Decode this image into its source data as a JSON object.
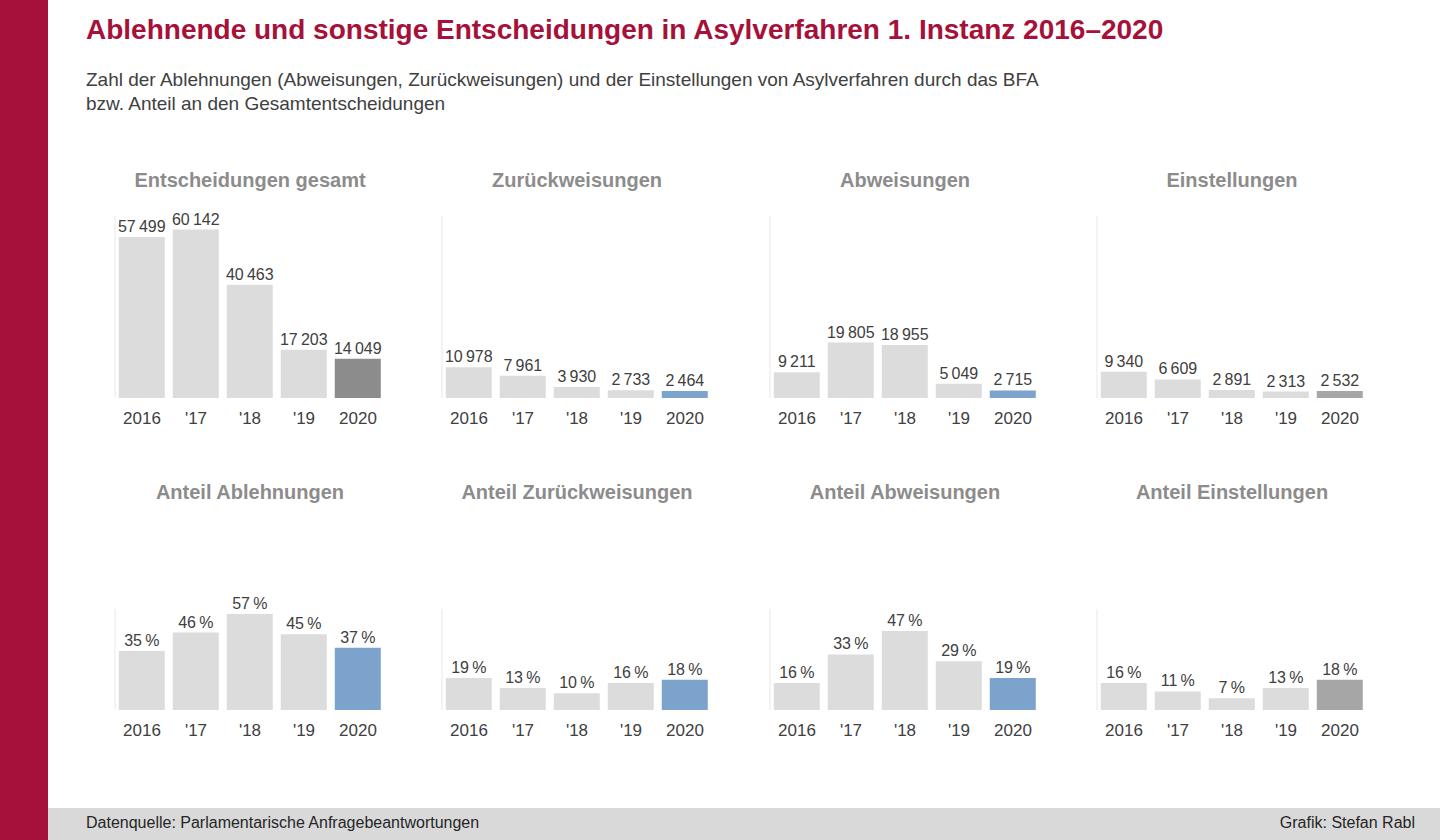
{
  "title": "Ablehnende und sonstige Entscheidungen in Asylverfahren 1. Instanz 2016–2020",
  "subtitle": "Zahl der Ablehnungen (Abweisungen, Zurückweisungen) und der Einstellungen von Asylverfahren durch das BFA\nbzw. Anteil an den Gesamtentscheidungen",
  "source": "Datenquelle: Parlamentarische Anfragebeantwortungen",
  "credit": "Grafik: Stefan Rabl",
  "chart_data": [
    {
      "type": "bar",
      "title": "Entscheidungen gesamt",
      "categories": [
        "2016",
        "'17",
        "'18",
        "'19",
        "2020"
      ],
      "values": [
        57499,
        60142,
        40463,
        17203,
        14049
      ],
      "value_labels": [
        "57 499",
        "60 142",
        "40 463",
        "17 203",
        "14 049"
      ],
      "colors": [
        "#dcdcdc",
        "#dcdcdc",
        "#dcdcdc",
        "#dcdcdc",
        "#8c8c8c"
      ],
      "ylim": [
        0,
        65000
      ],
      "data_labels": true,
      "tick_labels": "x"
    },
    {
      "type": "bar",
      "title": "Zurückweisungen",
      "categories": [
        "2016",
        "'17",
        "'18",
        "'19",
        "2020"
      ],
      "values": [
        10978,
        7961,
        3930,
        2733,
        2464
      ],
      "value_labels": [
        "10 978",
        "7 961",
        "3 930",
        "2 733",
        "2 464"
      ],
      "colors": [
        "#dcdcdc",
        "#dcdcdc",
        "#dcdcdc",
        "#dcdcdc",
        "#7ba3cc"
      ],
      "ylim": [
        0,
        65000
      ],
      "data_labels": true,
      "tick_labels": "x"
    },
    {
      "type": "bar",
      "title": "Abweisungen",
      "categories": [
        "2016",
        "'17",
        "'18",
        "'19",
        "2020"
      ],
      "values": [
        9211,
        19805,
        18955,
        5049,
        2715
      ],
      "value_labels": [
        "9 211",
        "19 805",
        "18 955",
        "5 049",
        "2 715"
      ],
      "colors": [
        "#dcdcdc",
        "#dcdcdc",
        "#dcdcdc",
        "#dcdcdc",
        "#7ba3cc"
      ],
      "ylim": [
        0,
        65000
      ],
      "data_labels": true,
      "tick_labels": "x"
    },
    {
      "type": "bar",
      "title": "Einstellungen",
      "categories": [
        "2016",
        "'17",
        "'18",
        "'19",
        "2020"
      ],
      "values": [
        9340,
        6609,
        2891,
        2313,
        2532
      ],
      "value_labels": [
        "9 340",
        "6 609",
        "2 891",
        "2 313",
        "2 532"
      ],
      "colors": [
        "#dcdcdc",
        "#dcdcdc",
        "#dcdcdc",
        "#dcdcdc",
        "#a6a6a6"
      ],
      "ylim": [
        0,
        65000
      ],
      "data_labels": true,
      "tick_labels": "x"
    },
    {
      "type": "bar",
      "title": "Anteil Ablehnungen",
      "categories": [
        "2016",
        "'17",
        "'18",
        "'19",
        "2020"
      ],
      "values": [
        35,
        46,
        57,
        45,
        37
      ],
      "value_labels": [
        "35 %",
        "46 %",
        "57 %",
        "45 %",
        "37 %"
      ],
      "colors": [
        "#dcdcdc",
        "#dcdcdc",
        "#dcdcdc",
        "#dcdcdc",
        "#7ba3cc"
      ],
      "ylim": [
        0,
        60
      ],
      "data_labels": true,
      "tick_labels": "x"
    },
    {
      "type": "bar",
      "title": "Anteil Zurückweisungen",
      "categories": [
        "2016",
        "'17",
        "'18",
        "'19",
        "2020"
      ],
      "values": [
        19,
        13,
        10,
        16,
        18
      ],
      "value_labels": [
        "19 %",
        "13 %",
        "10 %",
        "16 %",
        "18 %"
      ],
      "colors": [
        "#dcdcdc",
        "#dcdcdc",
        "#dcdcdc",
        "#dcdcdc",
        "#7ba3cc"
      ],
      "ylim": [
        0,
        60
      ],
      "data_labels": true,
      "tick_labels": "x"
    },
    {
      "type": "bar",
      "title": "Anteil Abweisungen",
      "categories": [
        "2016",
        "'17",
        "'18",
        "'19",
        "2020"
      ],
      "values": [
        16,
        33,
        47,
        29,
        19
      ],
      "value_labels": [
        "16 %",
        "33 %",
        "47 %",
        "29 %",
        "19 %"
      ],
      "colors": [
        "#dcdcdc",
        "#dcdcdc",
        "#dcdcdc",
        "#dcdcdc",
        "#7ba3cc"
      ],
      "ylim": [
        0,
        60
      ],
      "data_labels": true,
      "tick_labels": "x"
    },
    {
      "type": "bar",
      "title": "Anteil Einstellungen",
      "categories": [
        "2016",
        "'17",
        "'18",
        "'19",
        "2020"
      ],
      "values": [
        16,
        11,
        7,
        13,
        18
      ],
      "value_labels": [
        "16 %",
        "11 %",
        "7 %",
        "13 %",
        "18 %"
      ],
      "colors": [
        "#dcdcdc",
        "#dcdcdc",
        "#dcdcdc",
        "#dcdcdc",
        "#a6a6a6"
      ],
      "ylim": [
        0,
        60
      ],
      "data_labels": true,
      "tick_labels": "x"
    }
  ]
}
